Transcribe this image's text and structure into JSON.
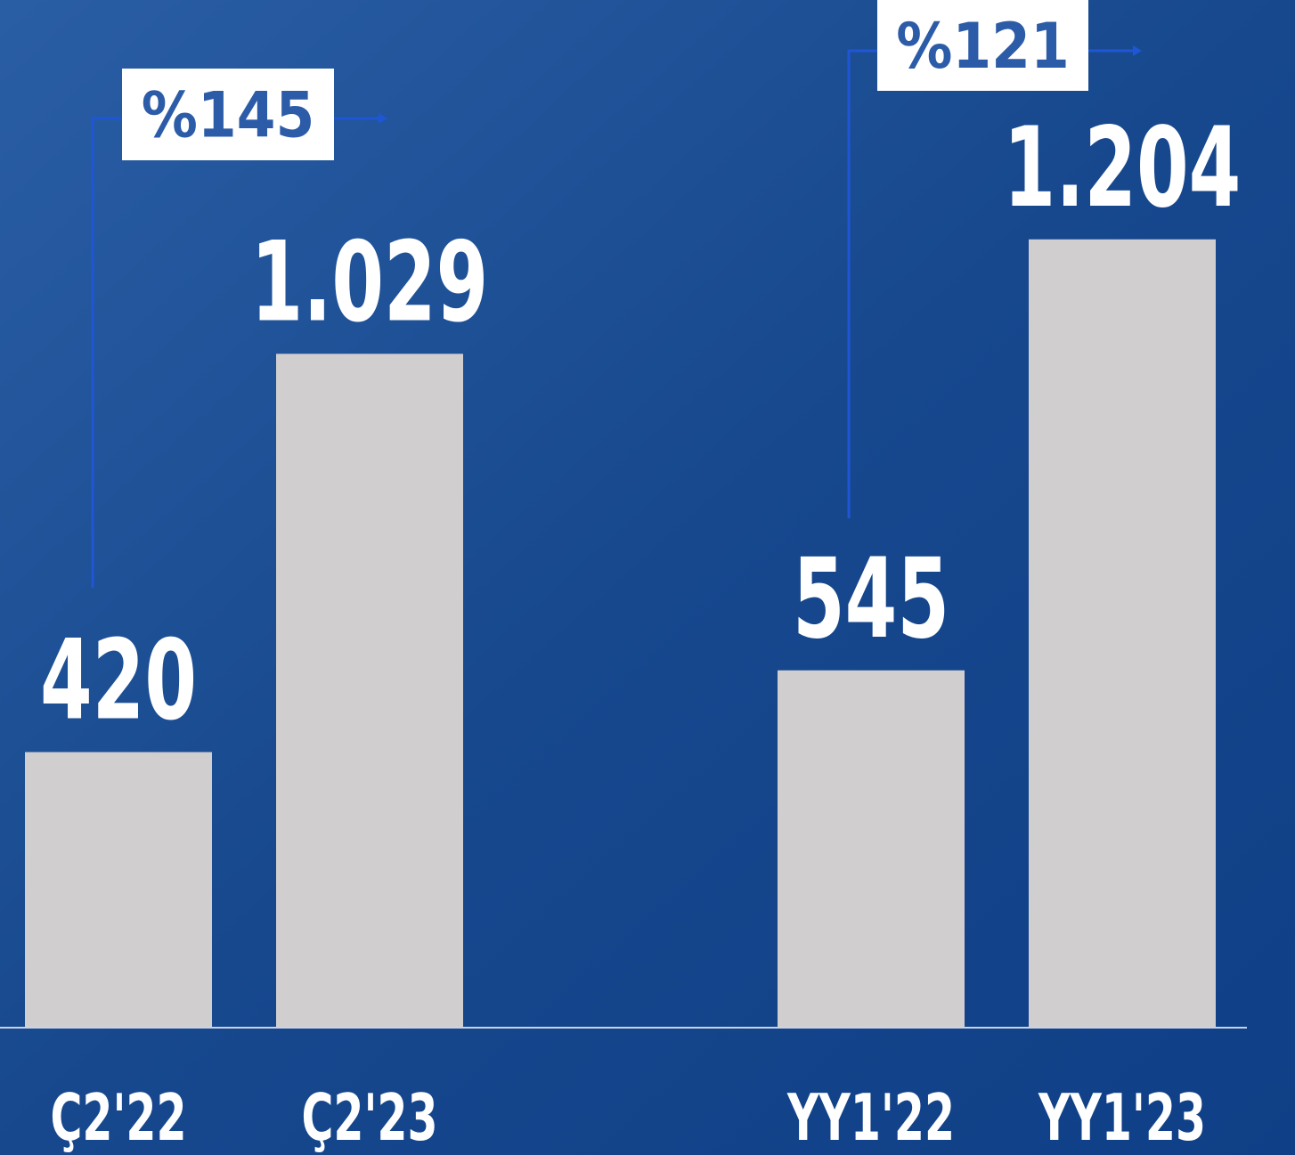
{
  "chart_data": {
    "type": "bar",
    "categories": [
      "Ç2'22",
      "Ç2'23",
      "YY1'22",
      "YY1'23"
    ],
    "values": [
      420,
      1029,
      545,
      1204
    ],
    "value_labels": [
      "420",
      "1.029",
      "545",
      "1.204"
    ],
    "color": "#d0cecf",
    "ylim": [
      0,
      1570
    ],
    "annotations": [
      {
        "text": "%145"
      },
      {
        "text": "%121"
      }
    ]
  }
}
